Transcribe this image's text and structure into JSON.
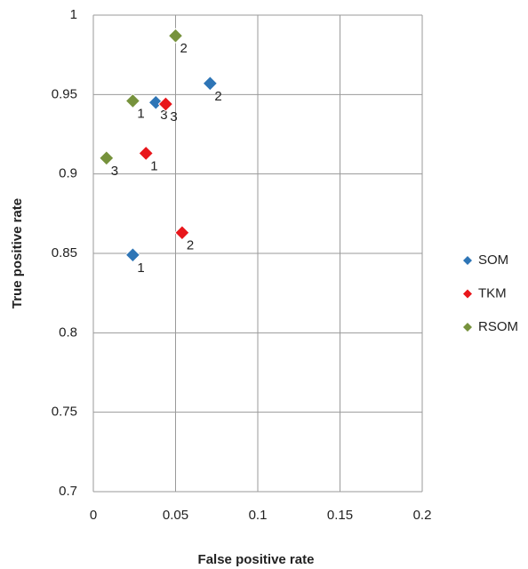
{
  "chart_data": {
    "type": "scatter",
    "xlabel": "False positive rate",
    "ylabel": "True positive rate",
    "xlim": [
      0,
      0.2
    ],
    "xticks": [
      0,
      0.05,
      0.1,
      0.15,
      0.2
    ],
    "ylim": [
      0.7,
      1
    ],
    "yticks": [
      0.7,
      0.75,
      0.8,
      0.85,
      0.9,
      0.95,
      1
    ],
    "grid": true,
    "legend": "right",
    "series": [
      {
        "name": "SOM",
        "color": "#2e75b6",
        "x": [
          0.024,
          0.071,
          0.038
        ],
        "values": [
          0.849,
          0.957,
          0.945
        ],
        "labels": [
          "1",
          "2",
          "3"
        ]
      },
      {
        "name": "TKM",
        "color": "#e8161b",
        "x": [
          0.032,
          0.054,
          0.044
        ],
        "values": [
          0.913,
          0.863,
          0.944
        ],
        "labels": [
          "1",
          "2",
          "3"
        ]
      },
      {
        "name": "RSOM",
        "color": "#76923c",
        "x": [
          0.024,
          0.05,
          0.008
        ],
        "values": [
          0.946,
          0.987,
          0.91
        ],
        "labels": [
          "1",
          "2",
          "3"
        ]
      }
    ]
  }
}
